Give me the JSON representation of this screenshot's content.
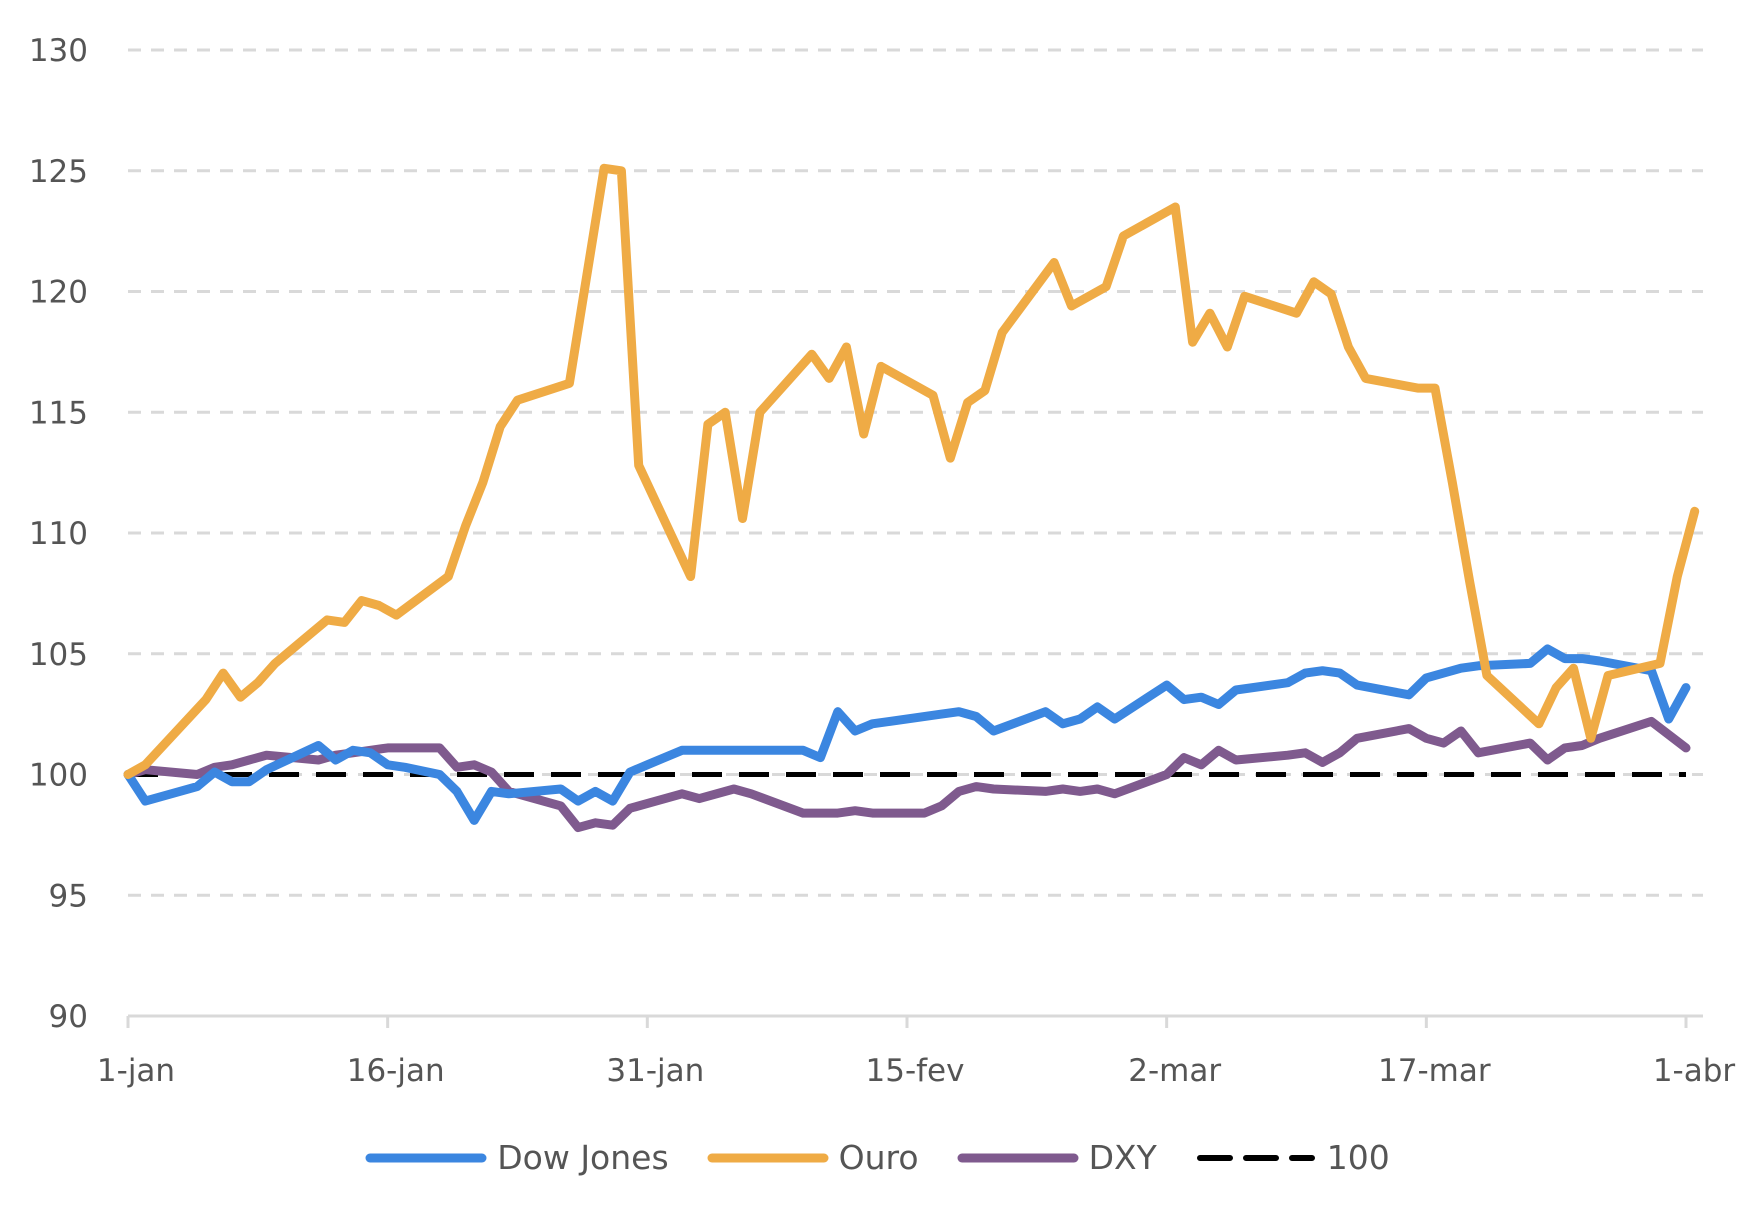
{
  "chart_data": {
    "type": "line",
    "title": "",
    "xlabel": "",
    "ylabel": "",
    "ylim": [
      90,
      130
    ],
    "yticks": [
      90,
      95,
      100,
      105,
      110,
      115,
      120,
      125,
      130
    ],
    "ytick_labels": [
      "90",
      "95",
      "100",
      "105",
      "110",
      "115",
      "120",
      "125",
      "130"
    ],
    "x_domain_days": [
      0,
      90
    ],
    "xticks_days": [
      0,
      15,
      30,
      45,
      60,
      75,
      90
    ],
    "xtick_labels": [
      "1-jan",
      "16-jan",
      "31-jan",
      "15-fev",
      "2-mar",
      "17-mar",
      "1-abr"
    ],
    "grid": "horizontal dashed",
    "legend_position": "bottom-center",
    "x_unit": "days since 1-jan",
    "series": [
      {
        "name": "Dow Jones",
        "color": "#3b86e0",
        "style": "solid",
        "x": [
          0,
          1,
          4,
          5,
          6,
          7,
          8,
          11,
          12,
          13,
          14,
          15,
          16,
          18,
          19,
          20,
          21,
          22,
          25,
          26,
          27,
          28,
          29,
          30,
          32,
          33,
          34,
          35,
          36,
          37,
          39,
          40,
          41,
          42,
          43,
          44,
          47,
          48,
          49,
          50,
          53,
          54,
          55,
          56,
          57,
          60,
          61,
          62,
          63,
          64,
          67,
          68,
          69,
          70,
          71,
          74,
          75,
          76,
          77,
          78,
          81,
          82,
          83,
          84,
          85,
          88,
          89,
          90
        ],
        "values": [
          100.0,
          98.9,
          99.5,
          100.1,
          99.7,
          99.7,
          100.2,
          101.2,
          100.6,
          101.0,
          100.9,
          100.4,
          100.3,
          100.0,
          99.3,
          98.1,
          99.3,
          99.2,
          99.4,
          98.9,
          99.3,
          98.9,
          100.1,
          100.4,
          101.0,
          101.0,
          101.0,
          101.0,
          101.0,
          101.0,
          101.0,
          100.7,
          102.6,
          101.8,
          102.1,
          102.2,
          102.5,
          102.6,
          102.4,
          101.8,
          102.6,
          102.1,
          102.3,
          102.8,
          102.3,
          103.7,
          103.1,
          103.2,
          102.9,
          103.5,
          103.8,
          104.2,
          104.3,
          104.2,
          103.7,
          103.3,
          104.0,
          104.2,
          104.4,
          104.5,
          104.6,
          105.2,
          104.8,
          104.8,
          104.7,
          104.3,
          102.3,
          103.6
        ]
      },
      {
        "name": "Ouro",
        "color": "#efab45",
        "style": "solid",
        "x": [
          0,
          1,
          4.5,
          5.5,
          6.5,
          7.5,
          8.5,
          11.5,
          12.5,
          13.5,
          14.5,
          15.5,
          18.5,
          19.5,
          20.5,
          21.5,
          22.5,
          25.5,
          27.5,
          28.5,
          29.5,
          32.5,
          33.5,
          34.5,
          35.5,
          36.5,
          39.5,
          40.5,
          41.5,
          42.5,
          43.5,
          46.5,
          47.5,
          48.5,
          49.5,
          50.5,
          53.5,
          54.5,
          55.5,
          56.5,
          57.5,
          60.5,
          61.5,
          62.5,
          63.5,
          64.5,
          67.5,
          68.5,
          69.5,
          70.5,
          71.5,
          74.5,
          75.5,
          76.5,
          77.5,
          78.5,
          81.5,
          82.5,
          83.5,
          84.5,
          85.5,
          88.5,
          89.5,
          90.5
        ],
        "values": [
          100.0,
          100.4,
          103.1,
          104.2,
          103.2,
          103.8,
          104.6,
          106.4,
          106.3,
          107.2,
          107.0,
          106.6,
          108.2,
          110.3,
          112.1,
          114.4,
          115.5,
          116.2,
          125.1,
          125.0,
          112.8,
          108.2,
          114.5,
          115.0,
          110.6,
          115.0,
          117.4,
          116.4,
          117.7,
          114.1,
          116.9,
          115.7,
          113.1,
          115.4,
          115.9,
          118.3,
          121.2,
          119.4,
          119.8,
          120.2,
          122.3,
          123.5,
          117.9,
          119.1,
          117.7,
          119.8,
          119.1,
          120.4,
          119.9,
          117.7,
          116.4,
          116.0,
          116.0,
          112.1,
          108.0,
          104.1,
          102.1,
          103.6,
          104.4,
          101.5,
          104.1,
          104.6,
          108.2,
          110.9
        ]
      },
      {
        "name": "DXY",
        "color": "#7f5a8e",
        "style": "solid",
        "x": [
          0,
          1,
          4,
          5,
          6,
          7,
          8,
          11,
          12,
          13,
          14,
          15,
          18,
          19,
          20,
          21,
          22,
          25,
          26,
          27,
          28,
          29,
          32,
          33,
          35,
          36,
          39,
          40,
          41,
          42,
          43,
          46,
          47,
          48,
          49,
          50,
          53,
          54,
          55,
          56,
          57,
          60,
          61,
          62,
          63,
          64,
          67,
          68,
          69,
          70,
          71,
          74,
          75,
          76,
          77,
          78,
          81,
          82,
          83,
          84,
          85,
          88,
          90
        ],
        "values": [
          100.0,
          100.2,
          100.0,
          100.3,
          100.4,
          100.6,
          100.8,
          100.6,
          100.8,
          100.9,
          101.0,
          101.1,
          101.1,
          100.3,
          100.4,
          100.1,
          99.3,
          98.7,
          97.8,
          98.0,
          97.9,
          98.6,
          99.2,
          99.0,
          99.4,
          99.2,
          98.4,
          98.4,
          98.4,
          98.5,
          98.4,
          98.4,
          98.7,
          99.3,
          99.5,
          99.4,
          99.3,
          99.4,
          99.3,
          99.4,
          99.2,
          100.0,
          100.7,
          100.4,
          101.0,
          100.6,
          100.8,
          100.9,
          100.5,
          100.9,
          101.5,
          101.9,
          101.5,
          101.3,
          101.8,
          100.9,
          101.3,
          100.6,
          101.1,
          101.2,
          101.5,
          102.2,
          101.1
        ]
      },
      {
        "name": "100",
        "color": "#000000",
        "style": "dashed",
        "x": [
          0,
          90
        ],
        "values": [
          100,
          100
        ]
      }
    ]
  },
  "legend": {
    "items": [
      {
        "label": "Dow Jones",
        "color": "#3b86e0",
        "style": "solid"
      },
      {
        "label": "Ouro",
        "color": "#efab45",
        "style": "solid"
      },
      {
        "label": "DXY",
        "color": "#7f5a8e",
        "style": "solid"
      },
      {
        "label": "100",
        "color": "#000000",
        "style": "dashed"
      }
    ]
  }
}
